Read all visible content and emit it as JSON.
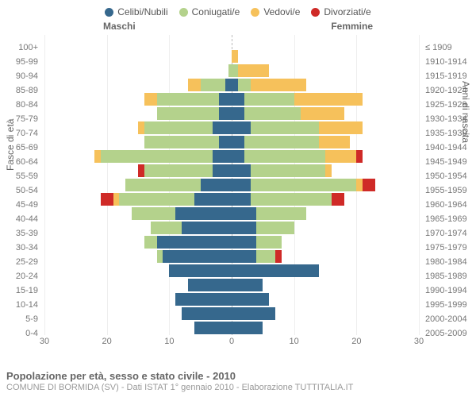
{
  "legend": {
    "items": [
      {
        "label": "Celibi/Nubili",
        "color": "#36688d"
      },
      {
        "label": "Coniugati/e",
        "color": "#b4d28c"
      },
      {
        "label": "Vedovi/e",
        "color": "#f6c15b"
      },
      {
        "label": "Divorziati/e",
        "color": "#cf2a27"
      }
    ]
  },
  "headers": {
    "male": "Maschi",
    "female": "Femmine"
  },
  "axis": {
    "left_title": "Fasce di età",
    "right_title": "Anni di nascita",
    "xmax": 30,
    "xticks": [
      30,
      20,
      10,
      0,
      10,
      20,
      30
    ],
    "grid_color": "#eeeeee",
    "center_color": "#bbbbbb"
  },
  "rows": [
    {
      "age": "100+",
      "birth": "≤ 1909",
      "m": [
        0,
        0,
        0,
        0
      ],
      "f": [
        0,
        0,
        0,
        0
      ]
    },
    {
      "age": "95-99",
      "birth": "1910-1914",
      "m": [
        0,
        0,
        0,
        0
      ],
      "f": [
        0,
        0,
        1,
        0
      ]
    },
    {
      "age": "90-94",
      "birth": "1915-1919",
      "m": [
        0,
        0.5,
        0,
        0
      ],
      "f": [
        0,
        1,
        5,
        0
      ]
    },
    {
      "age": "85-89",
      "birth": "1920-1924",
      "m": [
        1,
        4,
        2,
        0
      ],
      "f": [
        1,
        2,
        9,
        0
      ]
    },
    {
      "age": "80-84",
      "birth": "1925-1929",
      "m": [
        2,
        10,
        2,
        0
      ],
      "f": [
        2,
        8,
        11,
        0
      ]
    },
    {
      "age": "75-79",
      "birth": "1930-1934",
      "m": [
        2,
        10,
        0,
        0
      ],
      "f": [
        2,
        9,
        7,
        0
      ]
    },
    {
      "age": "70-74",
      "birth": "1935-1939",
      "m": [
        3,
        11,
        1,
        0
      ],
      "f": [
        3,
        11,
        7,
        0
      ]
    },
    {
      "age": "65-69",
      "birth": "1940-1944",
      "m": [
        2,
        12,
        0,
        0
      ],
      "f": [
        2,
        12,
        5,
        0
      ]
    },
    {
      "age": "60-64",
      "birth": "1945-1949",
      "m": [
        3,
        18,
        1,
        0
      ],
      "f": [
        2,
        13,
        5,
        1
      ]
    },
    {
      "age": "55-59",
      "birth": "1950-1954",
      "m": [
        3,
        11,
        0,
        1
      ],
      "f": [
        3,
        12,
        1,
        0
      ]
    },
    {
      "age": "50-54",
      "birth": "1955-1959",
      "m": [
        5,
        12,
        0,
        0
      ],
      "f": [
        3,
        17,
        1,
        2
      ]
    },
    {
      "age": "45-49",
      "birth": "1960-1964",
      "m": [
        6,
        12,
        1,
        2
      ],
      "f": [
        3,
        13,
        0,
        2
      ]
    },
    {
      "age": "40-44",
      "birth": "1965-1969",
      "m": [
        9,
        7,
        0,
        0
      ],
      "f": [
        4,
        8,
        0,
        0
      ]
    },
    {
      "age": "35-39",
      "birth": "1970-1974",
      "m": [
        8,
        5,
        0,
        0
      ],
      "f": [
        4,
        6,
        0,
        0
      ]
    },
    {
      "age": "30-34",
      "birth": "1975-1979",
      "m": [
        12,
        2,
        0,
        0
      ],
      "f": [
        4,
        4,
        0,
        0
      ]
    },
    {
      "age": "25-29",
      "birth": "1980-1984",
      "m": [
        11,
        1,
        0,
        0
      ],
      "f": [
        4,
        3,
        0,
        1
      ]
    },
    {
      "age": "20-24",
      "birth": "1985-1989",
      "m": [
        10,
        0,
        0,
        0
      ],
      "f": [
        14,
        0,
        0,
        0
      ]
    },
    {
      "age": "15-19",
      "birth": "1990-1994",
      "m": [
        7,
        0,
        0,
        0
      ],
      "f": [
        5,
        0,
        0,
        0
      ]
    },
    {
      "age": "10-14",
      "birth": "1995-1999",
      "m": [
        9,
        0,
        0,
        0
      ],
      "f": [
        6,
        0,
        0,
        0
      ]
    },
    {
      "age": "5-9",
      "birth": "2000-2004",
      "m": [
        8,
        0,
        0,
        0
      ],
      "f": [
        7,
        0,
        0,
        0
      ]
    },
    {
      "age": "0-4",
      "birth": "2005-2009",
      "m": [
        6,
        0,
        0,
        0
      ],
      "f": [
        5,
        0,
        0,
        0
      ]
    }
  ],
  "colors": [
    "#36688d",
    "#b4d28c",
    "#f6c15b",
    "#cf2a27"
  ],
  "footer": {
    "title": "Popolazione per età, sesso e stato civile - 2010",
    "subtitle": "COMUNE DI BORMIDA (SV) - Dati ISTAT 1° gennaio 2010 - Elaborazione TUTTITALIA.IT"
  }
}
